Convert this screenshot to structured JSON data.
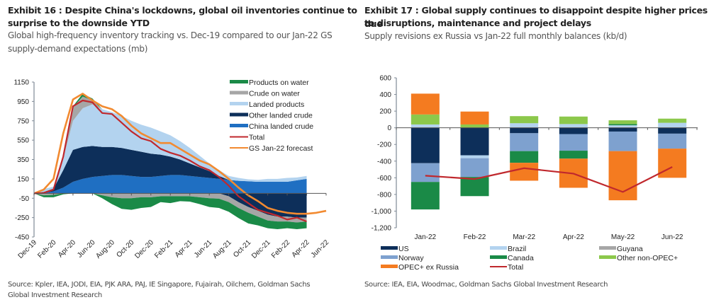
{
  "exhibit16": {
    "title": "Exhibit 16 : Despite China's lockdowns, global oil inventories continue to surprise to the downside YTD",
    "title_line1": "Exhibit 16 : Despite China's lockdowns, global oil inventories continue to",
    "title_line2": "surprise to the downside YTD",
    "subtitle_line1": "Global high-frequency inventory tracking vs. Dec-19 compared to our Jan-22 GS",
    "subtitle_line2": "supply-demand expectations (mb)",
    "source_line1": "Source: Kpler, IEA, JODI, EIA, PJK ARA, PAJ, IE Singapore, Fujairah, Oilchem, Goldman Sachs",
    "source_line2": "Global Investment Research"
  },
  "exhibit17": {
    "title_line1": "Exhibit 17 : Global supply continues to disappoint despite higher prices due",
    "title_line2": "to disruptions, maintenance and project delays",
    "subtitle": "Supply revisions ex Russia vs Jan-22 full monthly balances (kb/d)",
    "source": "Source: IEA, EIA, Woodmac, Goldman Sachs Global Investment Research"
  },
  "chart_data": [
    {
      "type": "area",
      "title": "Global high-frequency inventory tracking vs. Dec-19 compared to our Jan-22 GS supply-demand expectations (mb)",
      "xlabel": "",
      "ylabel": "mb",
      "ylim": [
        -450,
        1150
      ],
      "yticks": [
        1150,
        950,
        750,
        550,
        350,
        150,
        -50,
        -250,
        -450
      ],
      "xticks": [
        "Dec-19",
        "Feb-20",
        "Apr-20",
        "Jun-20",
        "Aug-20",
        "Oct-20",
        "Dec-20",
        "Feb-21",
        "Apr-21",
        "Jun-21",
        "Aug-21",
        "Oct-21",
        "Dec-21",
        "Feb-22",
        "Apr-22",
        "Jun-22"
      ],
      "x": [
        "Dec-19",
        "Jan-20",
        "Feb-20",
        "Mar-20",
        "Apr-20",
        "May-20",
        "Jun-20",
        "Jul-20",
        "Aug-20",
        "Sep-20",
        "Oct-20",
        "Nov-20",
        "Dec-20",
        "Jan-21",
        "Feb-21",
        "Mar-21",
        "Apr-21",
        "May-21",
        "Jun-21",
        "Jul-21",
        "Aug-21",
        "Sep-21",
        "Oct-21",
        "Nov-21",
        "Dec-21",
        "Jan-22",
        "Feb-22",
        "Mar-22",
        "Apr-22",
        "May-22",
        "Jun-22"
      ],
      "legend_position": "top-right",
      "stacked": true,
      "series": [
        {
          "name": "Products on water",
          "kind": "area",
          "color": "#1a8a47",
          "values": [
            0,
            -20,
            -25,
            -10,
            10,
            30,
            20,
            -30,
            -70,
            -110,
            -120,
            -110,
            -100,
            -60,
            -70,
            -50,
            -55,
            -70,
            -90,
            -95,
            -100,
            -105,
            -110,
            -90,
            -80,
            -80,
            -70,
            -70,
            -70,
            null,
            null
          ]
        },
        {
          "name": "Crude on water",
          "kind": "area",
          "color": "#a6a6a6",
          "values": [
            0,
            -20,
            -15,
            30,
            140,
            120,
            40,
            -20,
            -40,
            -50,
            -50,
            -40,
            -40,
            -30,
            -30,
            -30,
            -30,
            -40,
            -50,
            -55,
            -60,
            -60,
            -60,
            -60,
            -60,
            -50,
            -50,
            -50,
            -40,
            null,
            null
          ]
        },
        {
          "name": "Landed products",
          "kind": "area",
          "color": "#b3d3ef",
          "values": [
            0,
            30,
            20,
            120,
            300,
            400,
            430,
            390,
            360,
            330,
            300,
            280,
            270,
            240,
            220,
            190,
            160,
            120,
            80,
            60,
            40,
            30,
            20,
            20,
            30,
            30,
            40,
            30,
            30,
            null,
            null
          ]
        },
        {
          "name": "Other landed crude",
          "kind": "area",
          "color": "#0d2f5a",
          "values": [
            0,
            10,
            30,
            180,
            330,
            330,
            320,
            300,
            290,
            280,
            270,
            260,
            240,
            220,
            190,
            160,
            130,
            100,
            70,
            30,
            -30,
            -90,
            -140,
            -180,
            -220,
            -240,
            -240,
            -250,
            -250,
            null,
            null
          ]
        },
        {
          "name": "China landed crude",
          "kind": "area",
          "color": "#1f6fc2",
          "values": [
            0,
            5,
            20,
            60,
            120,
            150,
            170,
            180,
            190,
            190,
            180,
            170,
            170,
            180,
            190,
            190,
            180,
            170,
            160,
            150,
            140,
            130,
            125,
            120,
            120,
            120,
            120,
            135,
            150,
            null,
            null
          ]
        },
        {
          "name": "Total",
          "kind": "line",
          "color": "#c0282d",
          "values": [
            0,
            5,
            40,
            380,
            900,
            960,
            940,
            830,
            820,
            730,
            640,
            570,
            540,
            460,
            420,
            390,
            340,
            280,
            240,
            170,
            80,
            -30,
            -100,
            -170,
            -200,
            -230,
            -270,
            -250,
            -290,
            null,
            null
          ]
        },
        {
          "name": "GS Jan-22 forecast",
          "kind": "line",
          "color": "#f28a30",
          "values": [
            0,
            40,
            150,
            620,
            970,
            1030,
            960,
            900,
            870,
            800,
            700,
            620,
            570,
            520,
            520,
            460,
            400,
            340,
            300,
            230,
            150,
            60,
            -20,
            -80,
            -150,
            -180,
            -200,
            -210,
            -210,
            -200,
            -180
          ]
        }
      ]
    },
    {
      "type": "bar",
      "stacked": true,
      "title": "Supply revisions ex Russia vs Jan-22 full monthly balances (kb/d)",
      "xlabel": "",
      "ylabel": "kb/d",
      "ylim": [
        -1200,
        600
      ],
      "yticks": [
        "600",
        "400",
        "200",
        "0",
        "-200",
        "-400",
        "-600",
        "-800",
        "-1,000",
        "-1,200"
      ],
      "ytick_values": [
        600,
        400,
        200,
        0,
        -200,
        -400,
        -600,
        -800,
        -1000,
        -1200
      ],
      "categories": [
        "Jan-22",
        "Feb-22",
        "Mar-22",
        "Apr-22",
        "May-22",
        "Jun-22"
      ],
      "legend_position": "bottom",
      "series": [
        {
          "name": "US",
          "kind": "bar",
          "color": "#0d2f5a",
          "values": [
            -425,
            -330,
            -65,
            -75,
            -45,
            -70
          ]
        },
        {
          "name": "Brazil",
          "kind": "bar",
          "color": "#b3d3ef",
          "values": [
            40,
            -35,
            55,
            45,
            30,
            60
          ]
        },
        {
          "name": "Guyana",
          "kind": "bar",
          "color": "#a6a6a6",
          "values": [
            0,
            0,
            0,
            0,
            0,
            0
          ]
        },
        {
          "name": "Norway",
          "kind": "bar",
          "color": "#7ea1cf",
          "values": [
            -225,
            -225,
            -215,
            -200,
            -235,
            -180
          ]
        },
        {
          "name": "Canada",
          "kind": "bar",
          "color": "#1a8a47",
          "values": [
            -330,
            -230,
            -140,
            -95,
            15,
            0
          ]
        },
        {
          "name": "Other non-OPEC+",
          "kind": "bar",
          "color": "#8cc84b",
          "values": [
            120,
            40,
            85,
            90,
            45,
            50
          ]
        },
        {
          "name": "OPEC+ ex Russia",
          "kind": "bar",
          "color": "#f47b20",
          "values": [
            250,
            155,
            -215,
            -350,
            -590,
            -350
          ]
        },
        {
          "name": "Total",
          "kind": "line",
          "color": "#c0282d",
          "values": [
            -575,
            -615,
            -485,
            -550,
            -770,
            -470
          ]
        }
      ]
    }
  ]
}
